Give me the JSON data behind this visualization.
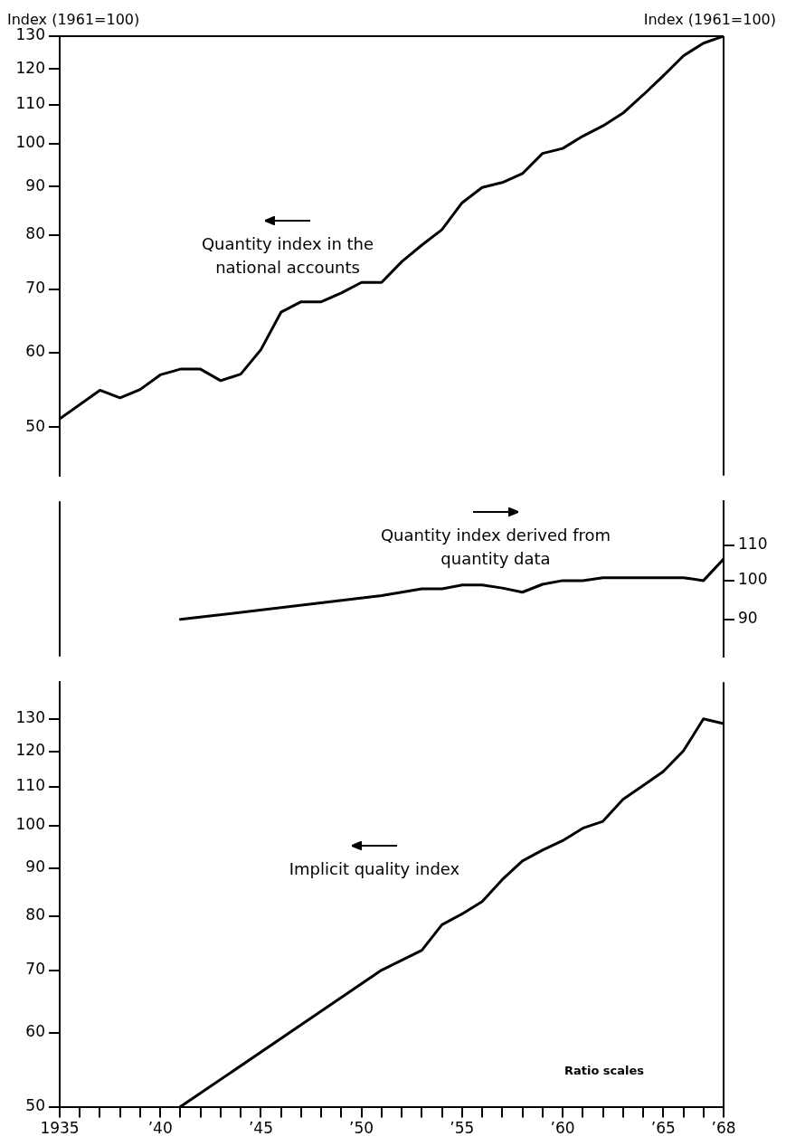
{
  "chart_data": [
    {
      "type": "line",
      "ylabel": "Index (1961=100)",
      "xlim": [
        1935,
        1968
      ],
      "tick_labels": "y",
      "ylim": [
        44.4,
        130
      ],
      "yticks": [
        50,
        60,
        70,
        80,
        90,
        100,
        110,
        120,
        130
      ],
      "log": true,
      "marker": "none",
      "line_style": "solid",
      "series": [
        {
          "name": "Quantity index in the national accounts",
          "color": "#000000",
          "x": [
            1935,
            1937,
            1938,
            1939,
            1940,
            1941,
            1942,
            1943,
            1944,
            1945,
            1946,
            1947,
            1948,
            1949,
            1950,
            1951,
            1952,
            1953,
            1954,
            1955,
            1956,
            1957,
            1958,
            1959,
            1960,
            1961,
            1962,
            1963,
            1964,
            1965,
            1966,
            1967,
            1968
          ],
          "values": [
            51,
            54.7,
            53.7,
            54.8,
            56.8,
            57.6,
            57.6,
            56,
            56.9,
            60.4,
            66.2,
            67.9,
            67.9,
            69.4,
            71.2,
            71.2,
            74.9,
            78,
            81,
            86.5,
            89.8,
            90.9,
            92.9,
            97.6,
            98.8,
            101.8,
            104.4,
            107.7,
            112.6,
            118,
            123.9,
            127.8,
            130
          ]
        }
      ]
    },
    {
      "type": "line",
      "y2label": "Index (1961=100)",
      "xlim": [
        1935,
        1968
      ],
      "tick_labels": "y",
      "y2lim": [
        81.4,
        124
      ],
      "y2ticks": [
        90,
        100,
        110
      ],
      "log": "y2",
      "marker": "none",
      "line_style": "solid",
      "series": [
        {
          "name": "Quantity index derived from quantity data",
          "color": "#000000",
          "axis": "y2",
          "x": [
            1941,
            1951,
            1953,
            1954,
            1955,
            1956,
            1957,
            1958,
            1959,
            1960,
            1961,
            1962,
            1963,
            1964,
            1965,
            1966,
            1967,
            1968
          ],
          "values": [
            90,
            96,
            97.8,
            97.8,
            98.8,
            98.8,
            98,
            96.9,
            99,
            100,
            100,
            100.8,
            100.8,
            100.8,
            100.8,
            100.8,
            100,
            106
          ]
        }
      ]
    },
    {
      "type": "line",
      "annotations": [
        "Ratio scales"
      ],
      "xlim": [
        1935,
        1968
      ],
      "xticks": [
        {
          "value": 1935,
          "label": "1935"
        },
        {
          "value": 1936,
          "label": null
        },
        {
          "value": 1937,
          "label": null
        },
        {
          "value": 1938,
          "label": null
        },
        {
          "value": 1939,
          "label": null
        },
        {
          "value": 1940,
          "label": "’40"
        },
        {
          "value": 1941,
          "label": null
        },
        {
          "value": 1942,
          "label": null
        },
        {
          "value": 1943,
          "label": null
        },
        {
          "value": 1944,
          "label": null
        },
        {
          "value": 1945,
          "label": "’45"
        },
        {
          "value": 1946,
          "label": null
        },
        {
          "value": 1947,
          "label": null
        },
        {
          "value": 1948,
          "label": null
        },
        {
          "value": 1949,
          "label": null
        },
        {
          "value": 1950,
          "label": "’50"
        },
        {
          "value": 1951,
          "label": null
        },
        {
          "value": 1952,
          "label": null
        },
        {
          "value": 1953,
          "label": null
        },
        {
          "value": 1954,
          "label": null
        },
        {
          "value": 1955,
          "label": "’55"
        },
        {
          "value": 1956,
          "label": null
        },
        {
          "value": 1957,
          "label": null
        },
        {
          "value": 1958,
          "label": null
        },
        {
          "value": 1959,
          "label": null
        },
        {
          "value": 1960,
          "label": "’60"
        },
        {
          "value": 1961,
          "label": null
        },
        {
          "value": 1962,
          "label": null
        },
        {
          "value": 1963,
          "label": null
        },
        {
          "value": 1964,
          "label": null
        },
        {
          "value": 1965,
          "label": "’65"
        },
        {
          "value": 1966,
          "label": null
        },
        {
          "value": 1967,
          "label": null
        },
        {
          "value": 1968,
          "label": "’68"
        }
      ],
      "ylim": [
        50,
        142.3
      ],
      "yticks": [
        50,
        60,
        70,
        80,
        90,
        100,
        110,
        120,
        130
      ],
      "log": true,
      "marker": "none",
      "line_style": "solid",
      "series": [
        {
          "name": "Implicit quality index",
          "color": "#000000",
          "x": [
            1941,
            1951,
            1953,
            1954,
            1955,
            1956,
            1957,
            1958,
            1959,
            1960,
            1961,
            1962,
            1963,
            1964,
            1965,
            1966,
            1967,
            1968
          ],
          "values": [
            50,
            70,
            73.5,
            78.3,
            80.4,
            82.9,
            87.5,
            91.6,
            94.1,
            96.3,
            99.3,
            101,
            106.6,
            110.3,
            114.2,
            120.1,
            130,
            128.5
          ]
        }
      ]
    }
  ]
}
